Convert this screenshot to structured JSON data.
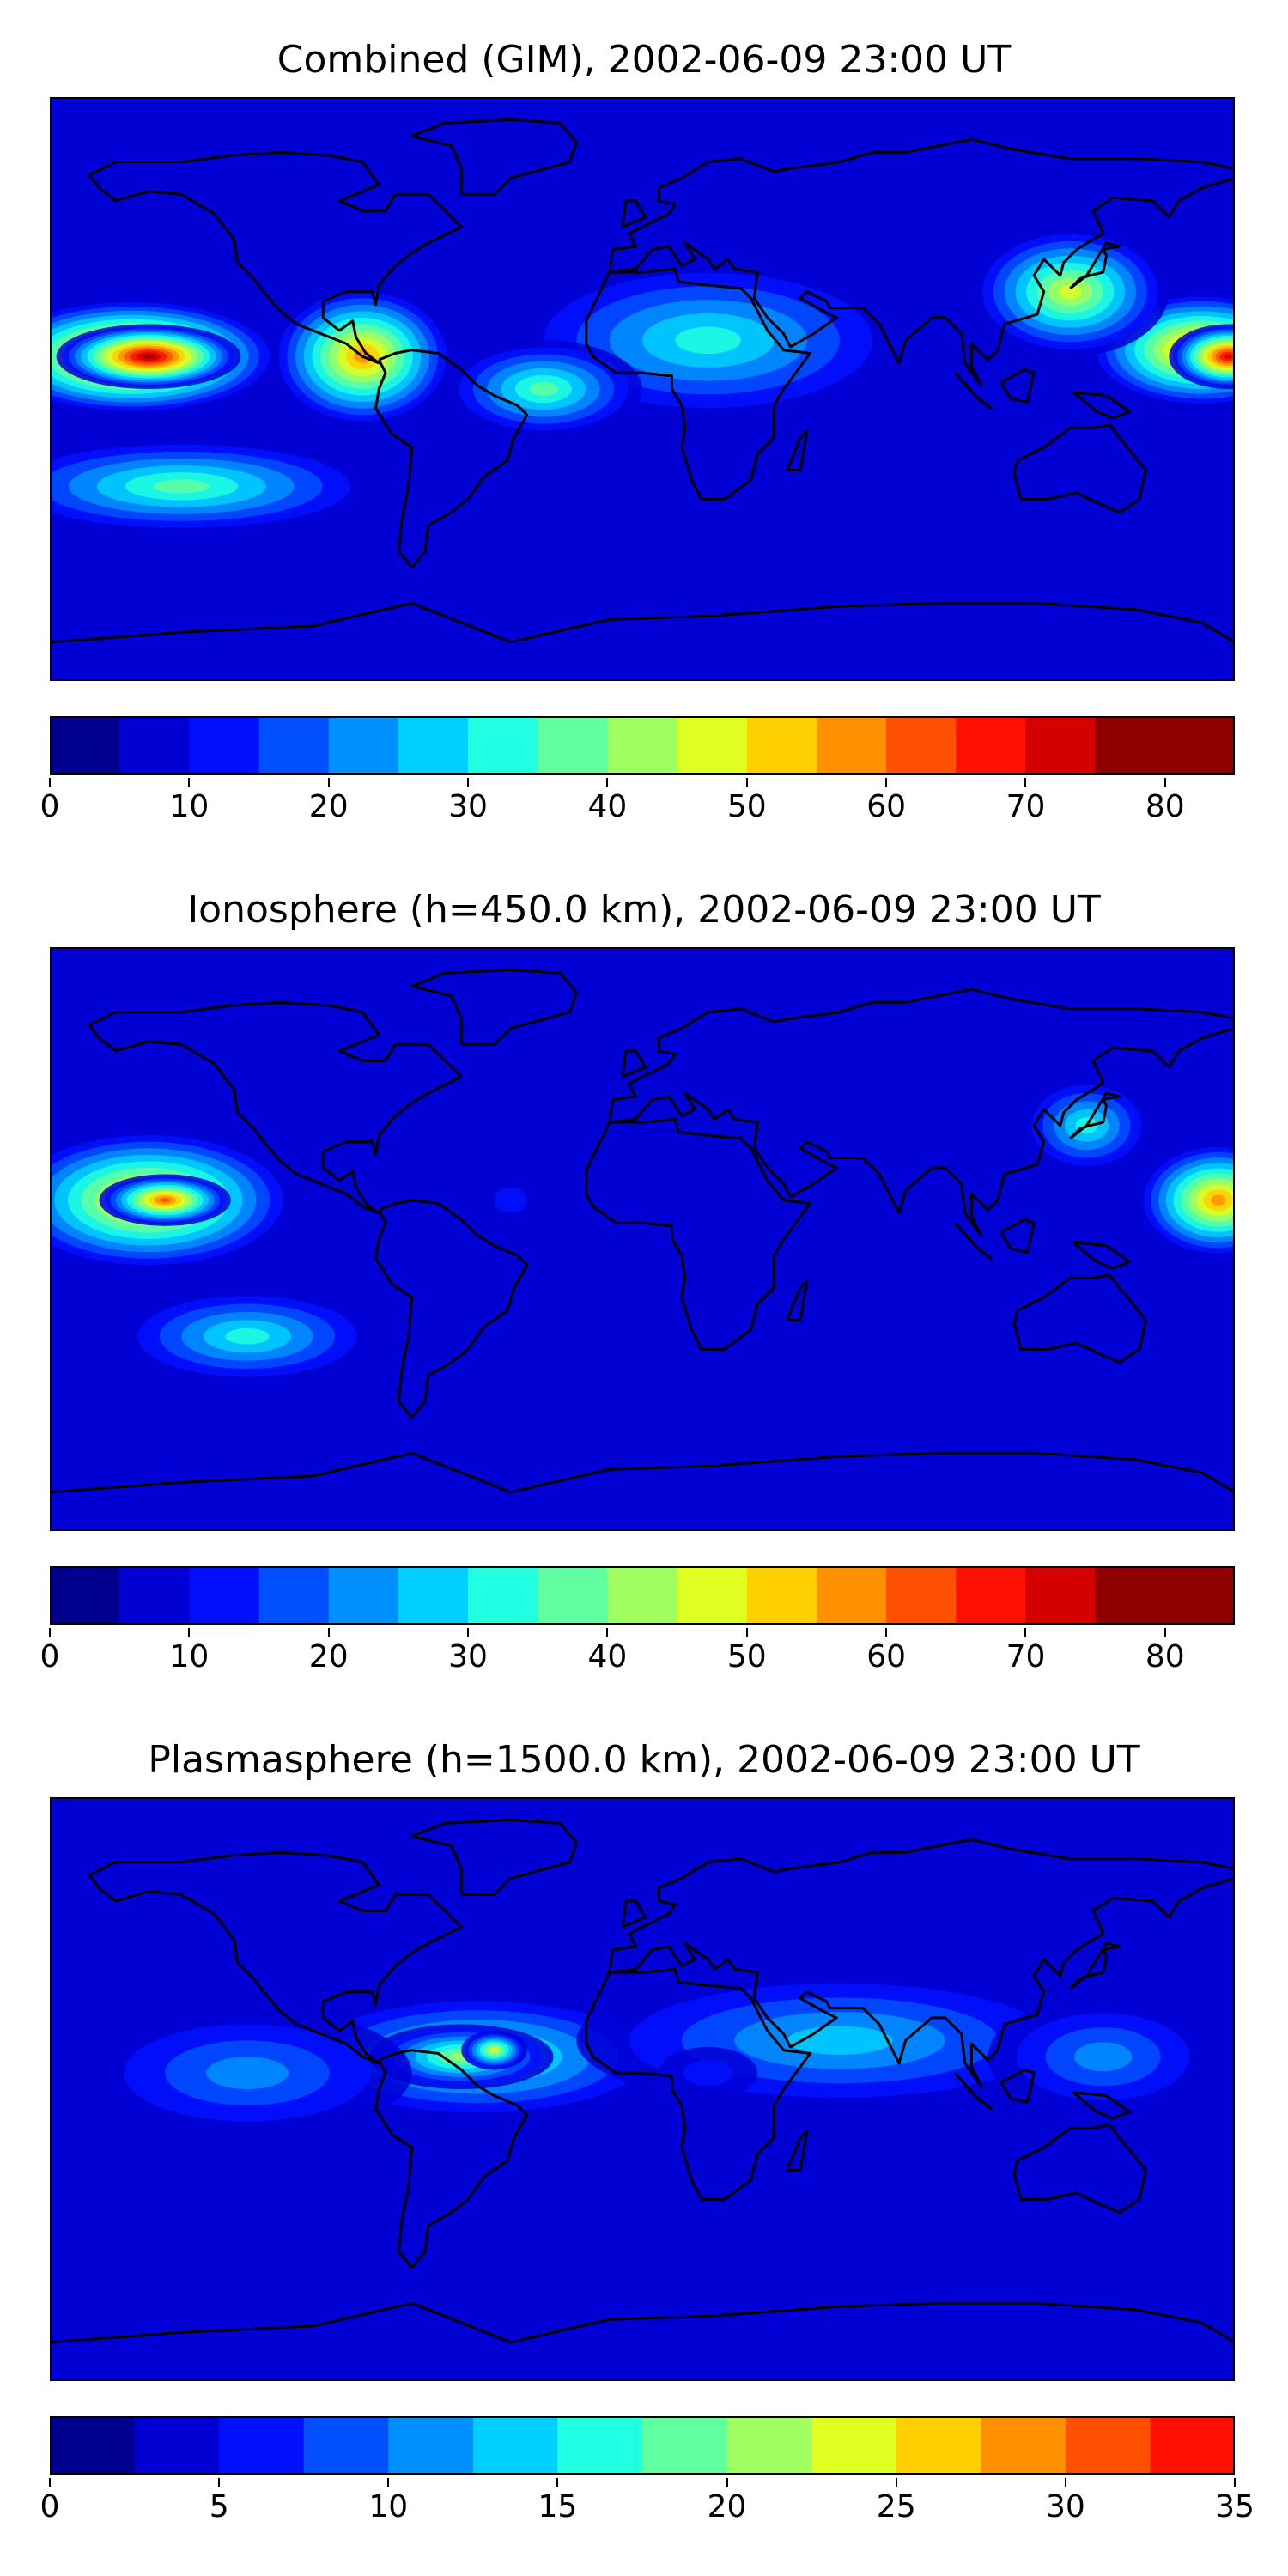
{
  "panels": [
    {
      "title": "Combined (GIM), 2002-06-09 23:00 UT",
      "colorbar": {
        "min": 0,
        "max": 85,
        "step": 5,
        "ticks": [
          "0",
          "10",
          "20",
          "30",
          "40",
          "50",
          "60",
          "70",
          "80"
        ]
      },
      "blobs": [
        {
          "lon": -155,
          "lat": 10,
          "rx": 45,
          "ry": 18,
          "value": 70
        },
        {
          "lon": -150,
          "lat": 10,
          "rx": 28,
          "ry": 10,
          "value": 78
        },
        {
          "lon": -85,
          "lat": 10,
          "rx": 28,
          "ry": 22,
          "value": 58
        },
        {
          "lon": 170,
          "lat": 12,
          "rx": 35,
          "ry": 18,
          "value": 62
        },
        {
          "lon": 178,
          "lat": 10,
          "rx": 18,
          "ry": 10,
          "value": 72
        },
        {
          "lon": 130,
          "lat": 30,
          "rx": 30,
          "ry": 20,
          "value": 45
        },
        {
          "lon": 20,
          "lat": 15,
          "rx": 60,
          "ry": 25,
          "value": 32
        },
        {
          "lon": -30,
          "lat": 0,
          "rx": 30,
          "ry": 15,
          "value": 35
        },
        {
          "lon": 60,
          "lat": -40,
          "rx": 90,
          "ry": 15,
          "value": 8
        },
        {
          "lon": 0,
          "lat": -75,
          "rx": 200,
          "ry": 10,
          "value": 5
        },
        {
          "lon": -140,
          "lat": -30,
          "rx": 60,
          "ry": 15,
          "value": 38
        }
      ]
    },
    {
      "title": "Ionosphere  (h=450.0 km), 2002-06-09 23:00 UT",
      "colorbar": {
        "min": 0,
        "max": 85,
        "step": 5,
        "ticks": [
          "0",
          "10",
          "20",
          "30",
          "40",
          "50",
          "60",
          "70",
          "80"
        ]
      },
      "blobs": [
        {
          "lon": -150,
          "lat": 12,
          "rx": 45,
          "ry": 22,
          "value": 56
        },
        {
          "lon": -145,
          "lat": 12,
          "rx": 20,
          "ry": 8,
          "value": 62
        },
        {
          "lon": 175,
          "lat": 12,
          "rx": 25,
          "ry": 18,
          "value": 55
        },
        {
          "lon": 135,
          "lat": 35,
          "rx": 20,
          "ry": 15,
          "value": 32
        },
        {
          "lon": 30,
          "lat": -30,
          "rx": 70,
          "ry": 25,
          "value": 8
        },
        {
          "lon": 80,
          "lat": -10,
          "rx": 40,
          "ry": 30,
          "value": 5
        },
        {
          "lon": -40,
          "lat": 12,
          "rx": 10,
          "ry": 8,
          "value": 10
        },
        {
          "lon": 0,
          "lat": -75,
          "rx": 200,
          "ry": 10,
          "value": 5
        },
        {
          "lon": -120,
          "lat": -30,
          "rx": 40,
          "ry": 15,
          "value": 32
        }
      ]
    },
    {
      "title": "Plasmasphere (h=1500.0 km), 2002-06-09 23:00 UT",
      "colorbar": {
        "min": 0,
        "max": 35,
        "step": 2.5,
        "ticks": [
          "0",
          "5",
          "10",
          "15",
          "20",
          "25",
          "30",
          "35"
        ]
      },
      "blobs": [
        {
          "lon": -50,
          "lat": 10,
          "rx": 60,
          "ry": 20,
          "value": 18
        },
        {
          "lon": -55,
          "lat": 10,
          "rx": 28,
          "ry": 10,
          "value": 21
        },
        {
          "lon": -45,
          "lat": 12,
          "rx": 10,
          "ry": 6,
          "value": 24
        },
        {
          "lon": 60,
          "lat": 15,
          "rx": 80,
          "ry": 22,
          "value": 13
        },
        {
          "lon": 20,
          "lat": 5,
          "rx": 15,
          "ry": 8,
          "value": 7
        },
        {
          "lon": 140,
          "lat": 10,
          "rx": 35,
          "ry": 18,
          "value": 12
        },
        {
          "lon": -120,
          "lat": 5,
          "rx": 50,
          "ry": 20,
          "value": 10
        },
        {
          "lon": 0,
          "lat": -60,
          "rx": 200,
          "ry": 20,
          "value": 2
        }
      ]
    }
  ],
  "style": {
    "colors": [
      "#00008f",
      "#0000d5",
      "#0010ff",
      "#0050ff",
      "#0090ff",
      "#00cfff",
      "#20ffdf",
      "#60ff9f",
      "#9fff60",
      "#dfff20",
      "#ffd000",
      "#ff9000",
      "#ff5000",
      "#ff1000",
      "#d50000",
      "#8f0000"
    ],
    "coast_color": "#000000"
  }
}
